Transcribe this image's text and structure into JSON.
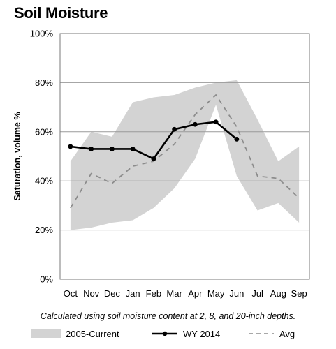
{
  "chart_data": {
    "type": "line",
    "title": "Soil Moisture",
    "ylabel": "Saturation, volume %",
    "caption": "Calculated using soil moisture content at 2, 8, and 20-inch depths.",
    "categories": [
      "Oct",
      "Nov",
      "Dec",
      "Jan",
      "Feb",
      "Mar",
      "Apr",
      "May",
      "Jun",
      "Jul",
      "Aug",
      "Sep"
    ],
    "y_ticks": [
      "0%",
      "20%",
      "40%",
      "60%",
      "80%",
      "100%"
    ],
    "ylim": [
      0,
      100
    ],
    "grid": true,
    "legend_position": "bottom",
    "band": {
      "name": "2005-Current",
      "color": "#d3d3d3",
      "lower": [
        20,
        21,
        23,
        24,
        29,
        37,
        49,
        71,
        42,
        28,
        31,
        23
      ],
      "upper": [
        48,
        60,
        58,
        72,
        74,
        75,
        78,
        80,
        81,
        65,
        48,
        54
      ]
    },
    "series": [
      {
        "name": "WY 2014",
        "color": "#000000",
        "style": "solid-markers",
        "values": [
          54,
          53,
          53,
          53,
          49,
          61,
          63,
          64,
          57,
          null,
          null,
          null
        ]
      },
      {
        "name": "Avg",
        "color": "#8c8c8c",
        "style": "dashed",
        "values": [
          29,
          43,
          39,
          46,
          48,
          55,
          67,
          75,
          62,
          42,
          41,
          33
        ]
      }
    ]
  }
}
